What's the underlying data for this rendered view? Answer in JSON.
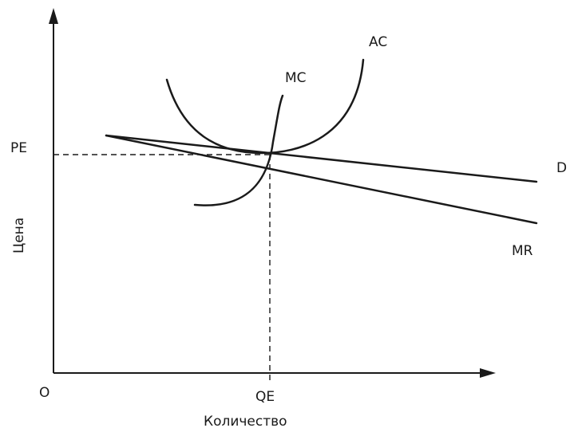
{
  "diagram": {
    "curves": {
      "ac": "AC",
      "mc": "MC",
      "d": "D",
      "mr": "MR"
    },
    "axes": {
      "y_label": "Цена",
      "x_label": "Количество",
      "origin": "O"
    },
    "equilibrium": {
      "price": "PE",
      "quantity": "QE"
    }
  }
}
